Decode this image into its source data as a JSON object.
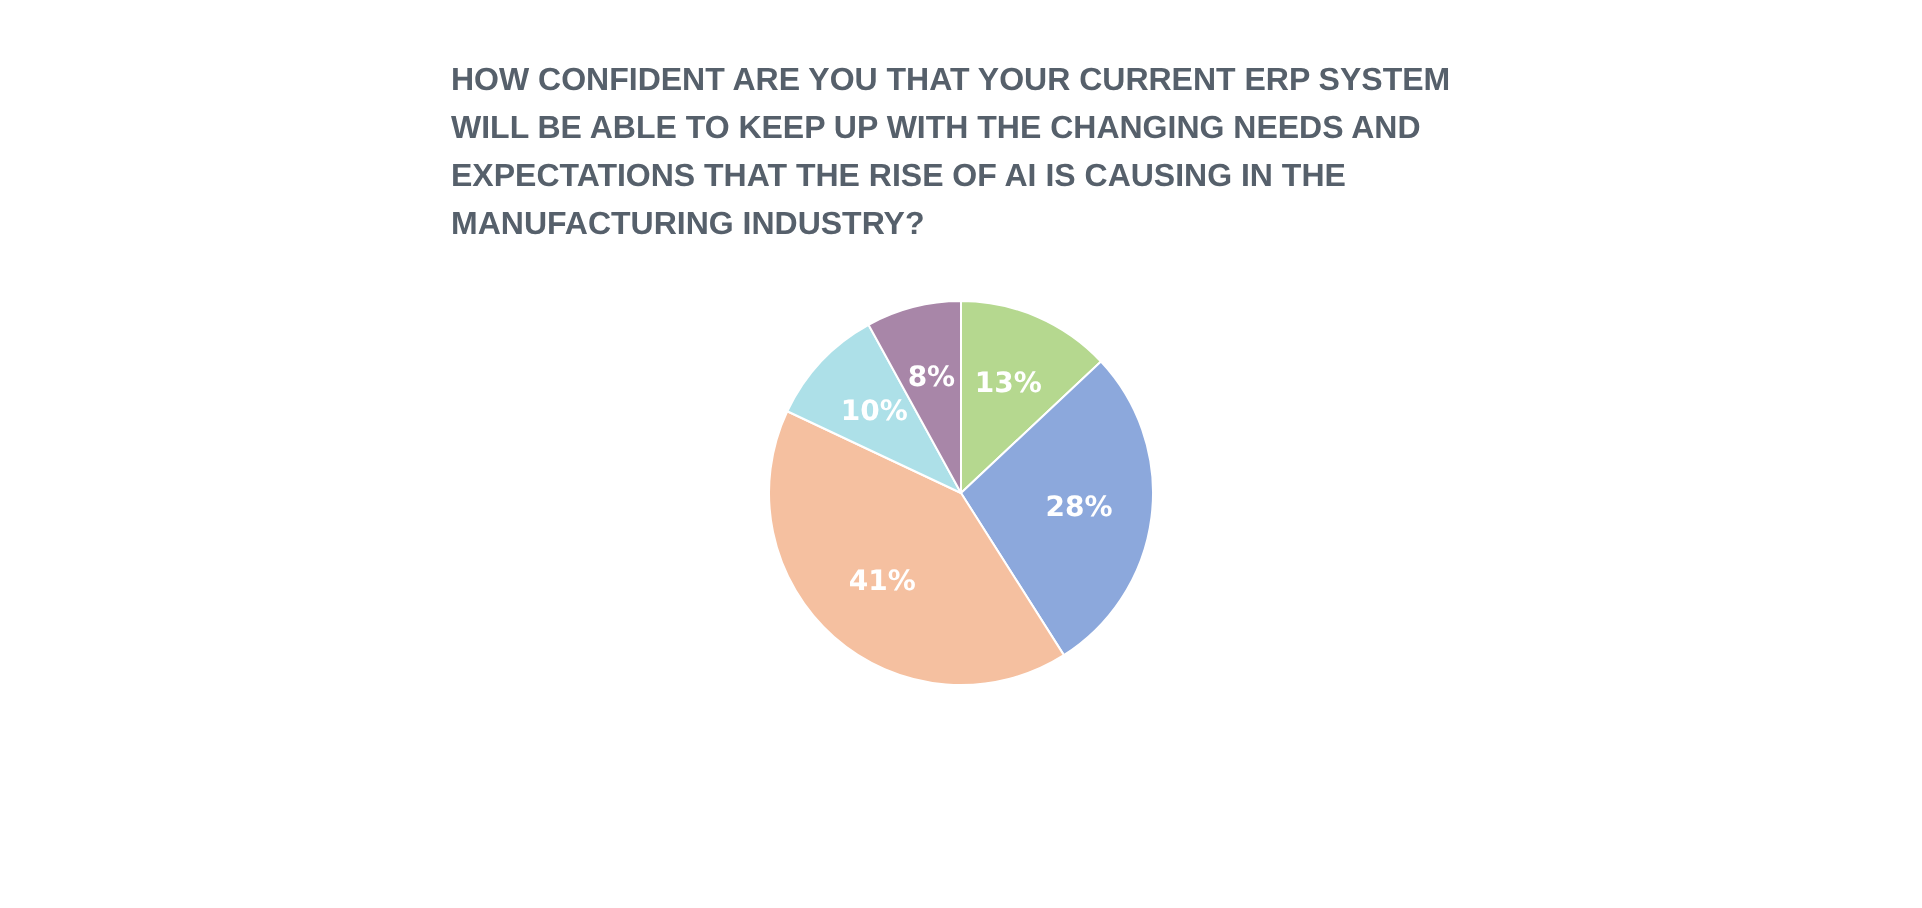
{
  "chart_data": {
    "type": "pie",
    "title": "HOW CONFIDENT ARE YOU THAT YOUR CURRENT ERP SYSTEM WILL BE ABLE TO KEEP UP WITH THE CHANGING NEEDS AND EXPECTATIONS THAT THE RISE OF AI IS CAUSING IN THE MANUFACTURING INDUSTRY?",
    "categories": [
      null,
      null,
      null,
      null,
      null
    ],
    "values": [
      13,
      28,
      41,
      10,
      8
    ],
    "value_labels": [
      "13%",
      "28%",
      "41%",
      "10%",
      "8%"
    ],
    "colors": [
      "#b5d88f",
      "#8ca8dc",
      "#f5c0a0",
      "#ade0e8",
      "#a886a8"
    ]
  }
}
